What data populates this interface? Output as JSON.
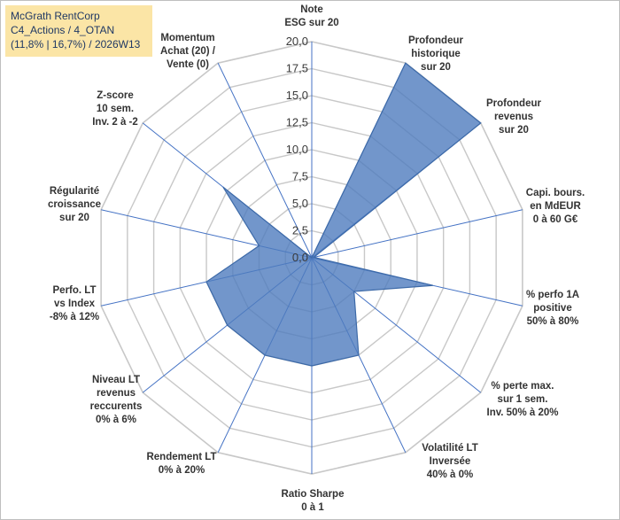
{
  "info": {
    "line1": "McGrath RentCorp",
    "line2": "C4_Actions / 4_OTAN",
    "line3": "(11,8% | 16,7%) / 2026W13"
  },
  "chart_data": {
    "type": "radar",
    "r_min": 0,
    "r_max": 20,
    "r_step": 2.5,
    "tick_labels": [
      "0,0",
      "2,5",
      "5,0",
      "7,5",
      "10,0",
      "12,5",
      "15,0",
      "17,5",
      "20,0"
    ],
    "axes": [
      [
        "Note",
        "ESG sur 20"
      ],
      [
        "Profondeur",
        "historique",
        "sur 20"
      ],
      [
        "Profondeur",
        "revenus",
        "sur 20"
      ],
      [
        "Capi. bours.",
        "en MdEUR",
        "0 à 60 G€"
      ],
      [
        "% perfo 1A",
        "positive",
        "50% à 80%"
      ],
      [
        "% perte max.",
        "sur 1 sem.",
        "Inv. 50% à 20%"
      ],
      [
        "Volatilité LT",
        "Inversée",
        "40% à 0%"
      ],
      [
        "Ratio Sharpe",
        "0 à 1"
      ],
      [
        "Rendement LT",
        "0% à 20%"
      ],
      [
        "Niveau LT",
        "revenus",
        "reccurents",
        "0% à 6%"
      ],
      [
        "Perfo. LT",
        "vs Index",
        "-8% à 12%"
      ],
      [
        "Régularité",
        "croissance",
        "sur 20"
      ],
      [
        "Z-score",
        "10 sem.",
        "Inv. 2 à -2"
      ],
      [
        "Momentum",
        "Achat (20) /",
        "Vente (0)"
      ]
    ],
    "series": [
      {
        "values": [
          0,
          20,
          20,
          0.2,
          11.5,
          5,
          10,
          10,
          10,
          10,
          10,
          5,
          10.5,
          0
        ],
        "color": "#4f7cbe",
        "fill_opacity": 0.8
      }
    ],
    "grid": true,
    "grid_color": "#c8c8c8",
    "spoke_color": "#4472c4"
  }
}
